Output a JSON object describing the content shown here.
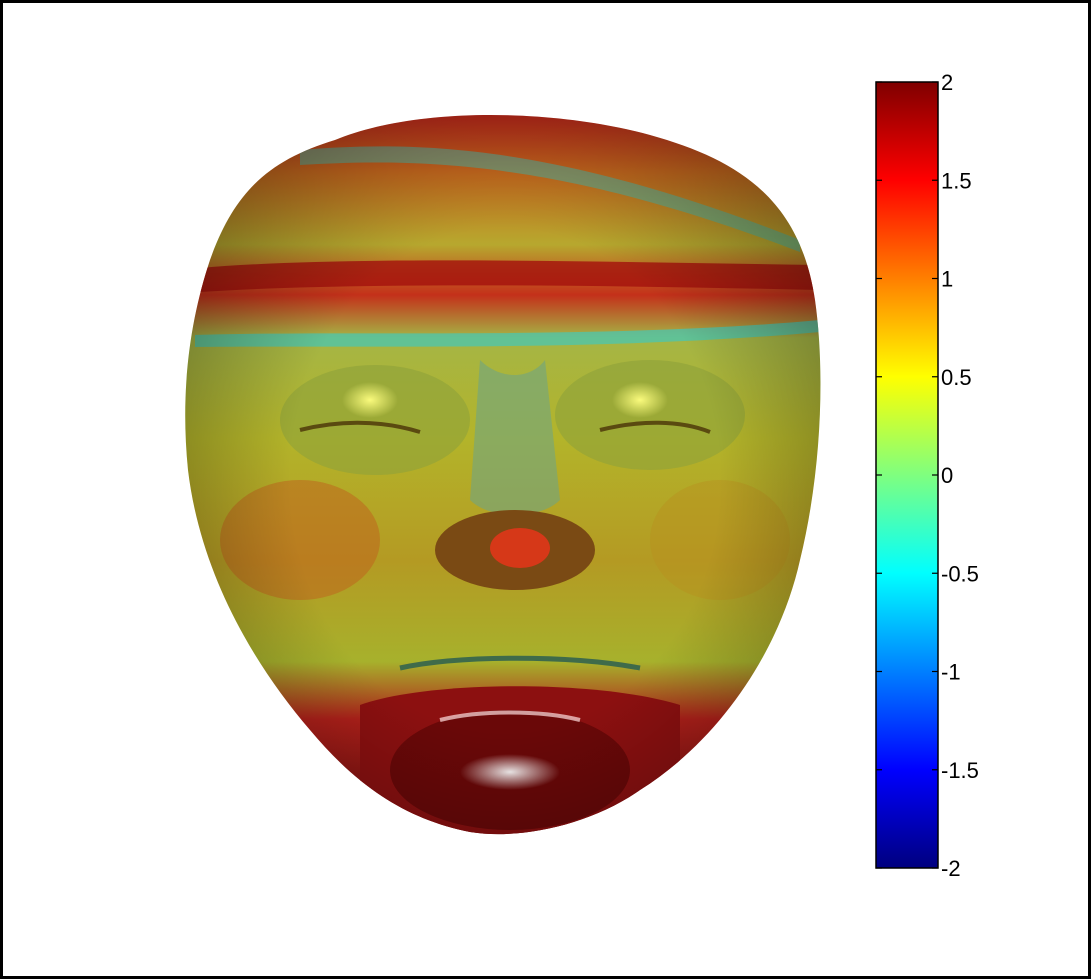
{
  "chart_data": {
    "type": "heatmap",
    "colormap": "jet",
    "colorbar": {
      "position": "right",
      "clim": [
        -2,
        2
      ],
      "ticks": [
        2,
        1.5,
        1,
        0.5,
        0,
        -0.5,
        -1,
        -1.5,
        -2
      ],
      "tick_labels": [
        "2",
        "1.5",
        "1",
        "0.5",
        "0",
        "-0.5",
        "-1",
        "-1.5",
        "-2"
      ],
      "colors": [
        "#00007f",
        "#0000ff",
        "#007fff",
        "#00ffff",
        "#7fff7f",
        "#ffff00",
        "#ff7f00",
        "#ff0000",
        "#7f0000"
      ]
    },
    "surface": {
      "subject": "3D face surface",
      "grid": false
    },
    "title": "",
    "xlabel": "",
    "ylabel": ""
  },
  "colors": {
    "background": "#ffffff",
    "frame": "#000000"
  }
}
